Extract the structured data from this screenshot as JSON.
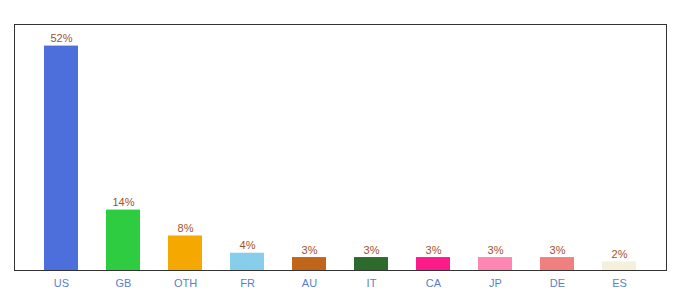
{
  "chart_data": {
    "type": "bar",
    "categories": [
      "US",
      "GB",
      "OTH",
      "FR",
      "AU",
      "IT",
      "CA",
      "JP",
      "DE",
      "ES"
    ],
    "values": [
      52,
      14,
      8,
      4,
      3,
      3,
      3,
      3,
      3,
      2
    ],
    "value_labels": [
      "52%",
      "14%",
      "8%",
      "4%",
      "3%",
      "3%",
      "3%",
      "3%",
      "3%",
      "2%"
    ],
    "colors": [
      "#4d6fdb",
      "#2ecc40",
      "#f5a800",
      "#87ceeb",
      "#c0651a",
      "#2d6b2d",
      "#ff1a8c",
      "#ff85b3",
      "#f08080",
      "#f5f0dc"
    ],
    "ylim": [
      0,
      57
    ],
    "data_labels": true,
    "tick_labels": "x",
    "grid": false
  }
}
